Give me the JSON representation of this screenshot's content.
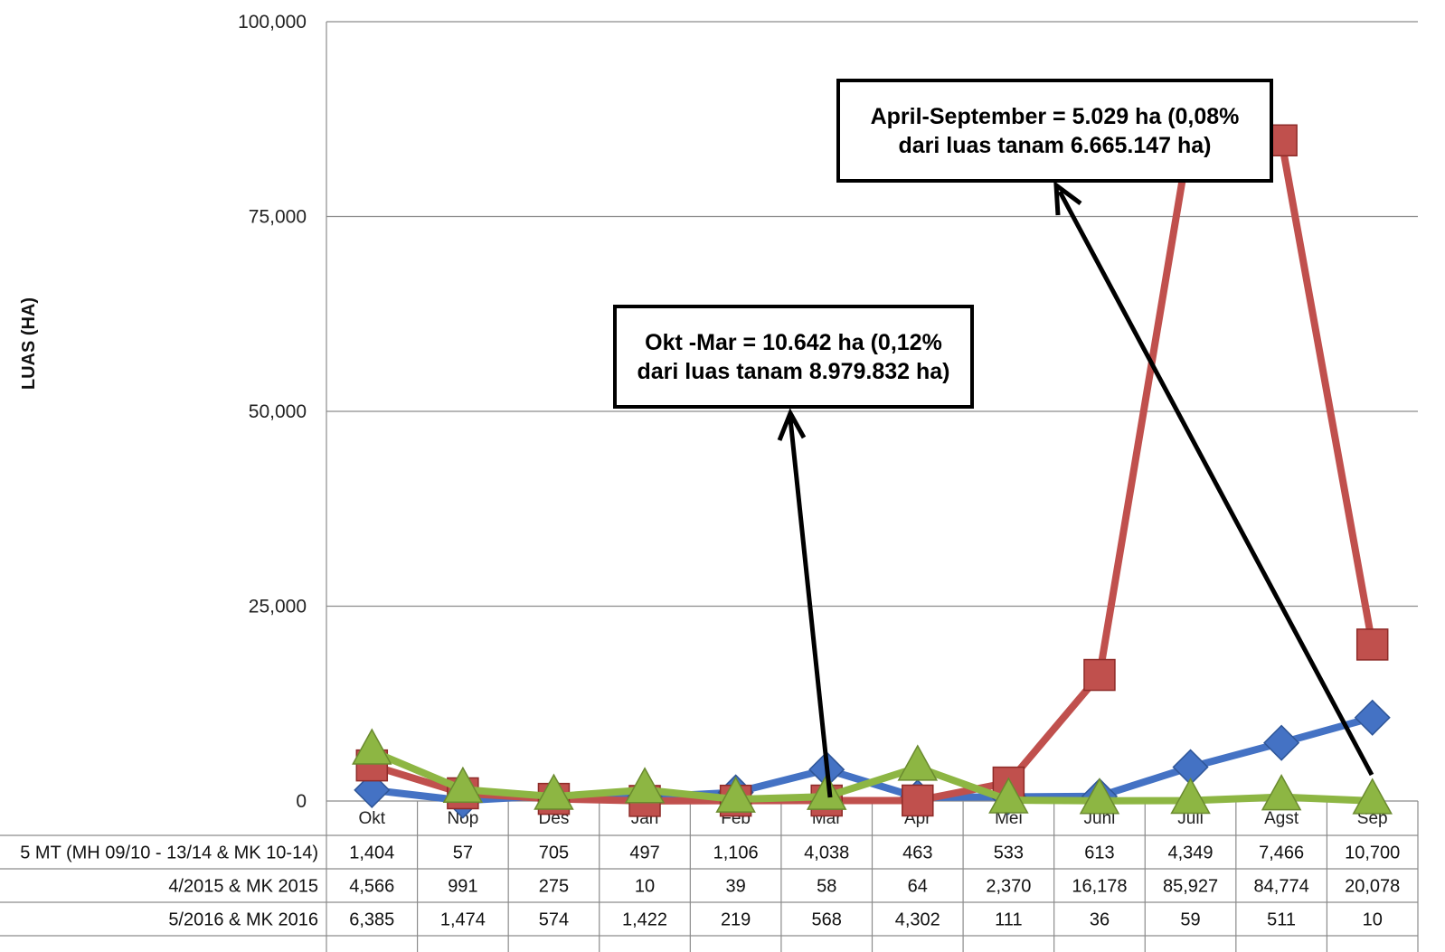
{
  "chart_data": {
    "type": "line",
    "title": "",
    "xlabel": "",
    "ylabel": "LUAS (HA)",
    "ylim": [
      0,
      100000
    ],
    "yticks": [
      "0",
      "25,000",
      "50,000",
      "75,000",
      "100,000"
    ],
    "ytick_values": [
      0,
      25000,
      50000,
      75000,
      100000
    ],
    "grid": true,
    "categories": [
      "Okt",
      "Nop",
      "Des",
      "Jan",
      "Feb",
      "Mar",
      "Apr",
      "Mei",
      "Juni",
      "Juli",
      "Agst",
      "Sep"
    ],
    "series": [
      {
        "name": "5 MT (MH 09/10 - 13/14 & MK 10-14)",
        "color": "#4472c4",
        "marker": "diamond",
        "values": [
          1404,
          57,
          705,
          497,
          1106,
          4038,
          463,
          533,
          613,
          4349,
          7466,
          10700
        ],
        "labels": [
          "1,404",
          "57",
          "705",
          "497",
          "1,106",
          "4,038",
          "463",
          "533",
          "613",
          "4,349",
          "7,466",
          "10,700"
        ]
      },
      {
        "name": "4/2015 & MK 2015",
        "color": "#c0504d",
        "marker": "square",
        "values": [
          4566,
          991,
          275,
          10,
          39,
          58,
          64,
          2370,
          16178,
          85927,
          84774,
          20078
        ],
        "labels": [
          "4,566",
          "991",
          "275",
          "10",
          "39",
          "58",
          "64",
          "2,370",
          "16,178",
          "85,927",
          "84,774",
          "20,078"
        ]
      },
      {
        "name": "5/2016 & MK 2016",
        "color": "#8db643",
        "marker": "triangle",
        "values": [
          6385,
          1474,
          574,
          1422,
          219,
          568,
          4302,
          111,
          36,
          59,
          511,
          10
        ],
        "labels": [
          "6,385",
          "1,474",
          "574",
          "1,422",
          "219",
          "568",
          "4,302",
          "111",
          "36",
          "59",
          "511",
          "10"
        ]
      }
    ],
    "annotations": [
      {
        "line1": "Okt -Mar = 10.642 ha (0,12%",
        "line2": "dari luas tanam 8.979.832 ha)"
      },
      {
        "line1": "April-September = 5.029 ha (0,08%",
        "line2": "dari luas tanam 6.665.147 ha)"
      }
    ]
  }
}
